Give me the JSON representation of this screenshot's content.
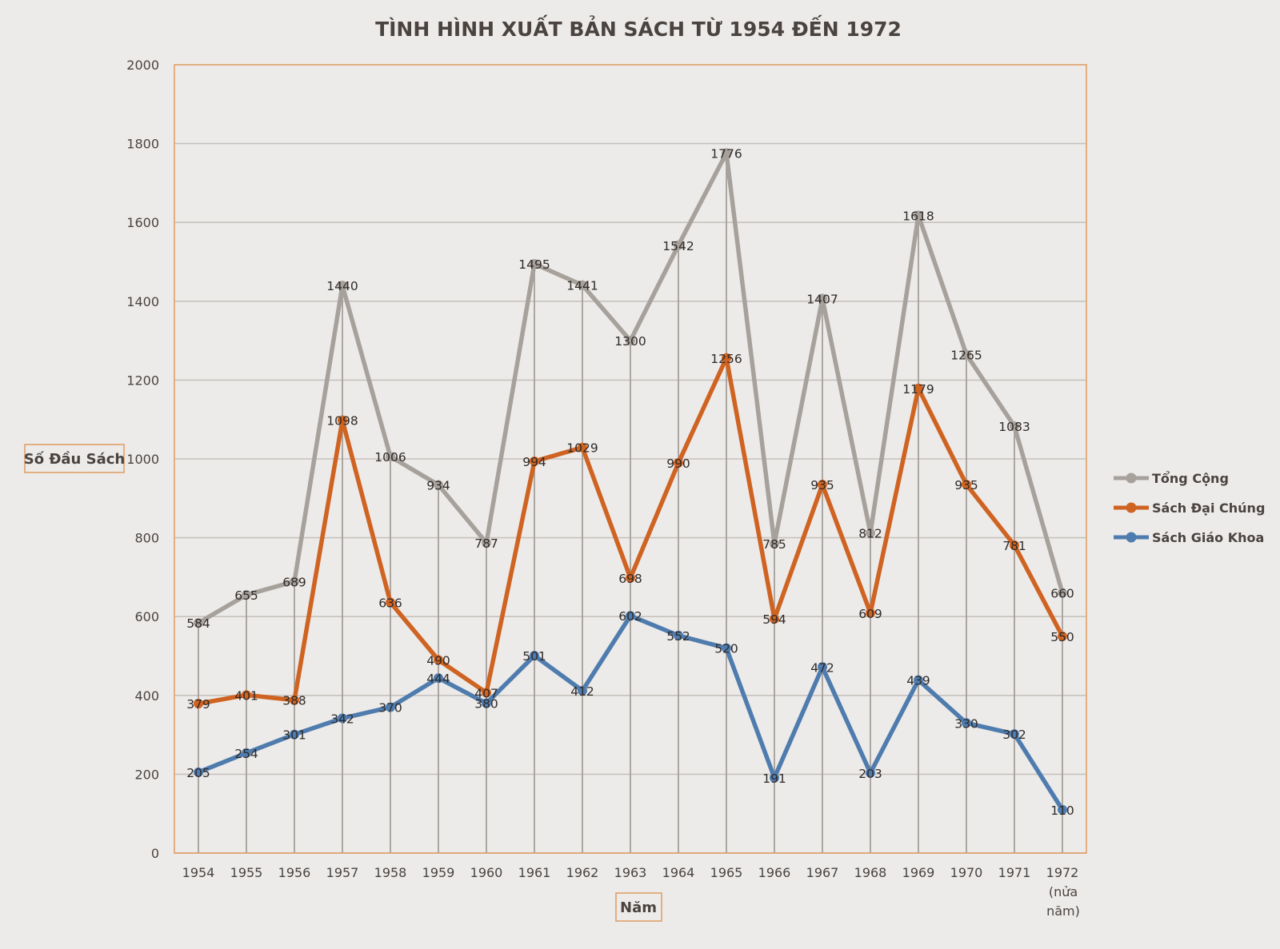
{
  "chart_data": {
    "type": "line",
    "title": "TÌNH HÌNH XUẤT BẢN SÁCH TỪ 1954 ĐẾN 1972",
    "xlabel": "Năm",
    "ylabel": "Số Đầu Sách",
    "ylim": [
      0,
      2000
    ],
    "ytick_step": 200,
    "yticks": [
      "0",
      "200",
      "400",
      "600",
      "800",
      "1000",
      "1200",
      "1400",
      "1600",
      "1800",
      "2000"
    ],
    "grid": true,
    "legend_position": "right",
    "categories": [
      "1954",
      "1955",
      "1956",
      "1957",
      "1958",
      "1959",
      "1960",
      "1961",
      "1962",
      "1963",
      "1964",
      "1965",
      "1966",
      "1967",
      "1968",
      "1969",
      "1970",
      "1971",
      "1972"
    ],
    "category_sublabels": {
      "1972": [
        "(nửa",
        "năm)"
      ]
    },
    "series": [
      {
        "name": "Tổng Cộng",
        "color": "#a7a19c",
        "values": [
          584,
          655,
          689,
          1440,
          1006,
          934,
          787,
          1495,
          1441,
          1300,
          1542,
          1776,
          785,
          1407,
          812,
          1618,
          1265,
          1083,
          660
        ]
      },
      {
        "name": "Sách Đại Chúng",
        "color": "#cf6322",
        "values": [
          379,
          401,
          388,
          1098,
          636,
          490,
          407,
          994,
          1029,
          698,
          990,
          1256,
          594,
          935,
          609,
          1179,
          935,
          781,
          550
        ]
      },
      {
        "name": "Sách Giáo Khoa",
        "color": "#4f7cae",
        "values": [
          205,
          254,
          301,
          342,
          370,
          444,
          380,
          501,
          412,
          602,
          552,
          520,
          191,
          472,
          203,
          439,
          330,
          302,
          110
        ]
      }
    ],
    "frame_color": "#e0a06a"
  }
}
